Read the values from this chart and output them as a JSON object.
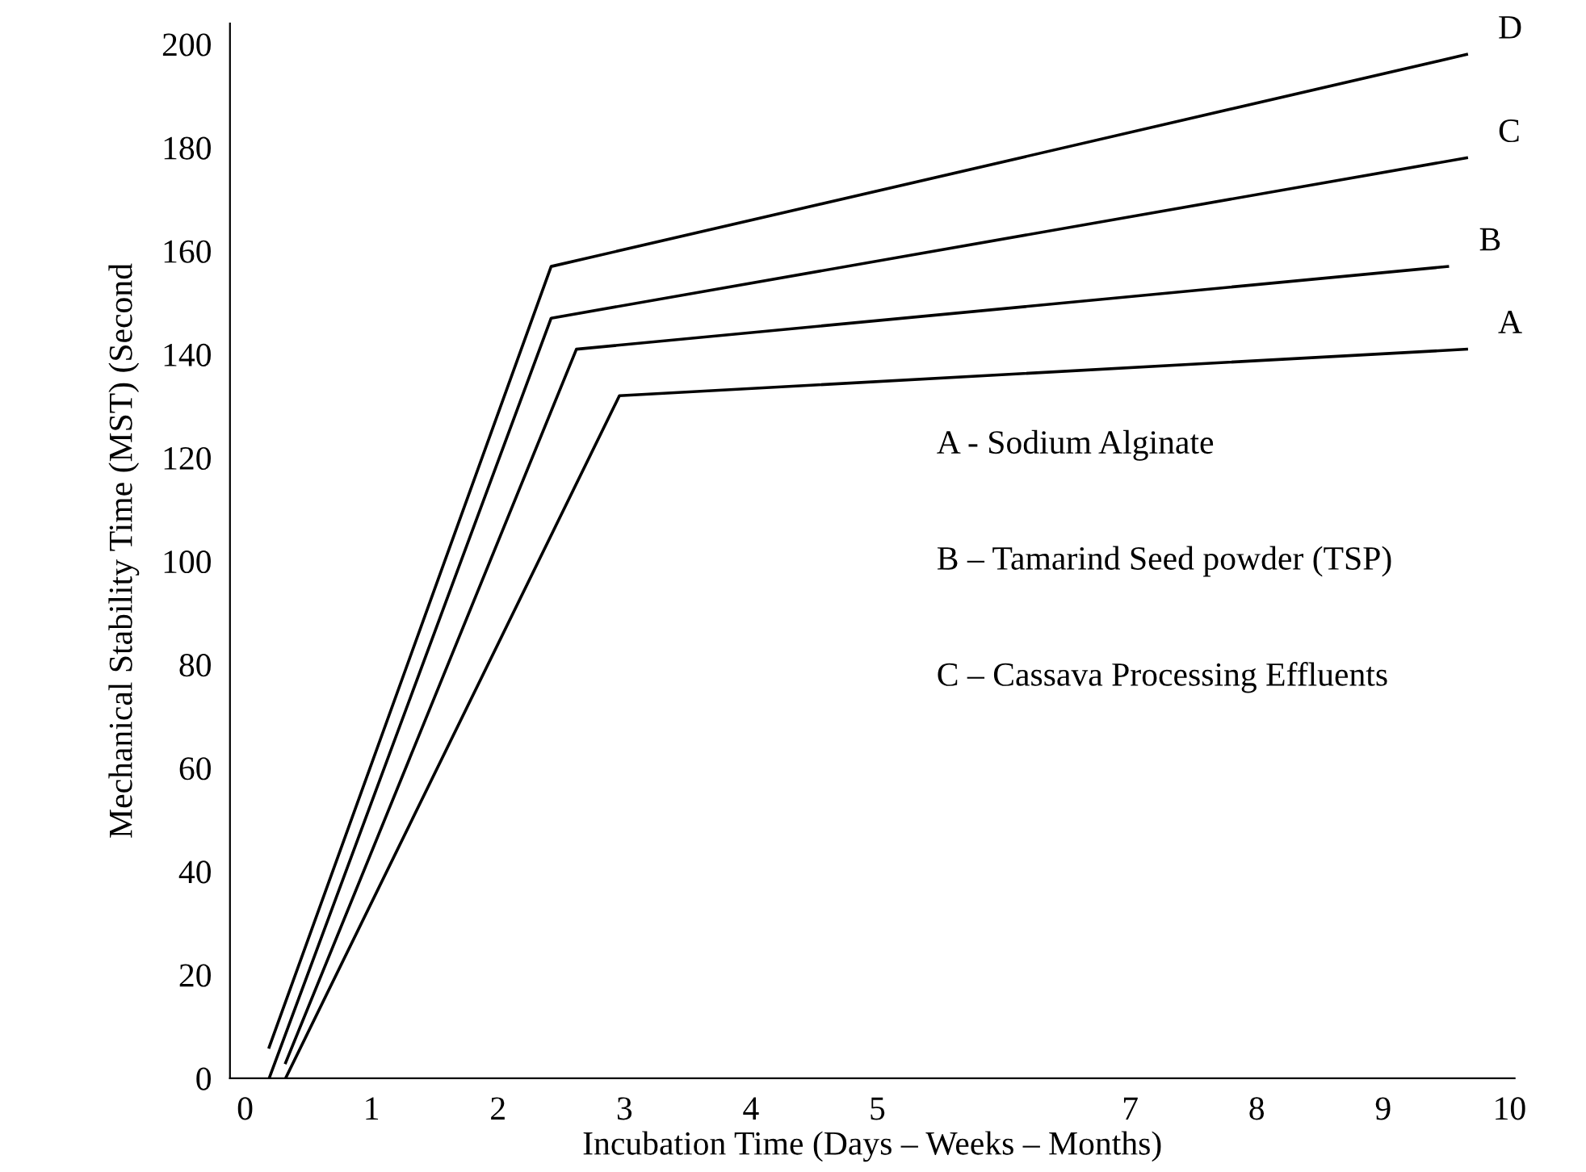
{
  "chart_data": {
    "type": "line",
    "xlabel": "Incubation Time (Days – Weeks – Months)",
    "ylabel": "Mechanical Stability Time (MST) (Second",
    "xlim": [
      -0.12,
      10.04
    ],
    "ylim": [
      0,
      204
    ],
    "xticks": [
      0,
      1,
      2,
      3,
      4,
      5,
      7,
      8,
      9,
      10
    ],
    "yticks": [
      0,
      20,
      40,
      60,
      80,
      100,
      120,
      140,
      160,
      180,
      200
    ],
    "grid": false,
    "legend": false,
    "marker": "none",
    "line_style": "solid",
    "series": [
      {
        "name": "D",
        "color": "#000000",
        "x": [
          0.19,
          2.42,
          9.66
        ],
        "values": [
          6,
          157,
          198
        ]
      },
      {
        "name": "C",
        "color": "#000000",
        "x": [
          0.19,
          2.42,
          9.66
        ],
        "values": [
          0,
          147,
          178
        ]
      },
      {
        "name": "B",
        "color": "#000000",
        "x": [
          0.32,
          2.62,
          9.51
        ],
        "values": [
          3,
          141,
          157
        ]
      },
      {
        "name": "A",
        "color": "#000000",
        "x": [
          0.32,
          2.96,
          9.66
        ],
        "values": [
          0,
          132,
          141
        ]
      }
    ],
    "annotations": [
      "A - Sodium Alginate",
      "B – Tamarind Seed powder (TSP)",
      "C – Cassava Processing Effluents"
    ]
  }
}
